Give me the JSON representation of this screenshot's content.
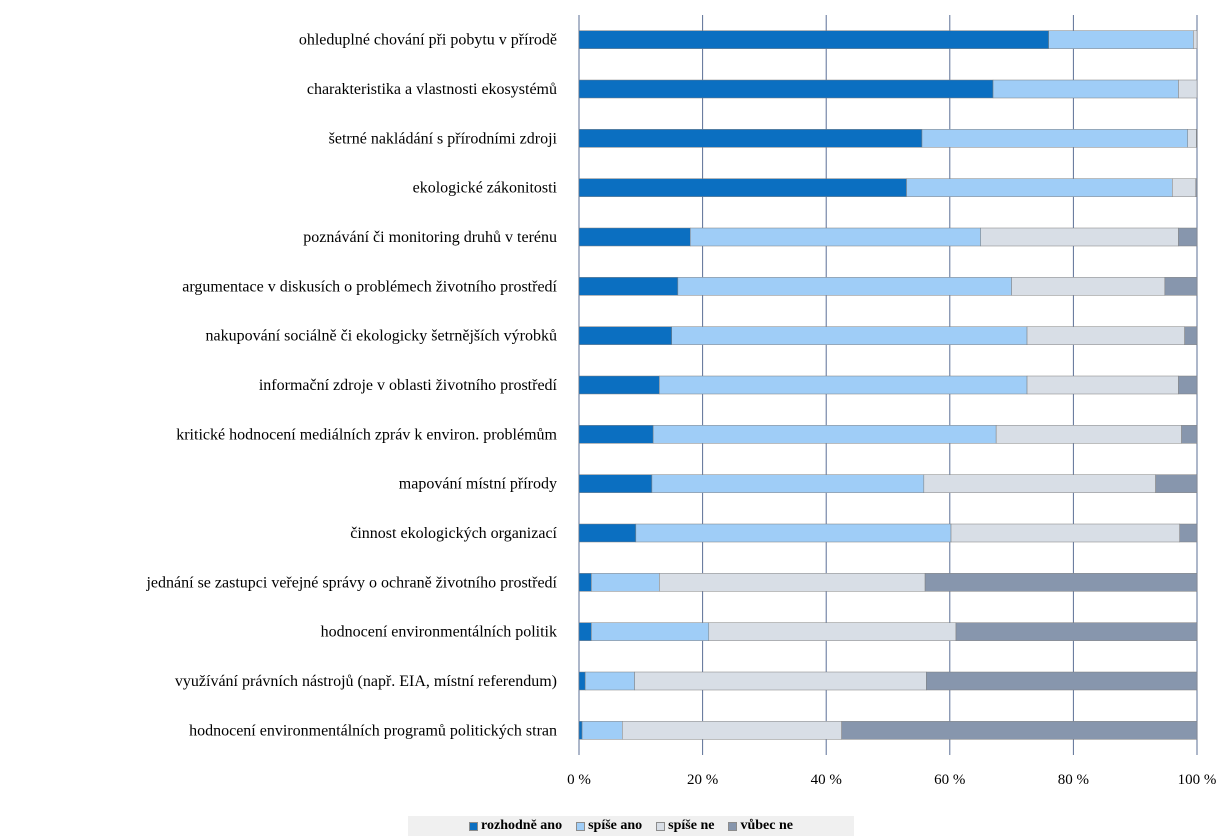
{
  "chart_data": {
    "type": "bar",
    "orientation": "horizontal",
    "stacked": "percent",
    "categories": [
      "ohleduplné chování při pobytu v přírodě",
      "charakteristika a vlastnosti ekosystémů",
      "šetrné nakládání s přírodními zdroji",
      "ekologické zákonitosti",
      "poznávání či monitoring druhů v terénu",
      "argumentace v diskusích o problémech životního prostředí",
      "nakupování sociálně či ekologicky šetrnějších výrobků",
      "informační zdroje v oblasti životního prostředí",
      "kritické hodnocení mediálních zpráv k environ. problémům",
      "mapování místní přírody",
      "činnost ekologických organizací",
      "jednání se zastupci veřejné správy o ochraně životního prostředí",
      "hodnocení environmentálních politik",
      "využívání právních nástrojů (např. EIA, místní referendum)",
      "hodnocení environmentálních programů politických stran"
    ],
    "series": [
      {
        "name": "rozhodně ano",
        "color": "#0b6fc1",
        "values": [
          76,
          67,
          55.5,
          53,
          18,
          16,
          15,
          13,
          12,
          11.8,
          9.2,
          2,
          2,
          1,
          0.5
        ]
      },
      {
        "name": "spíše ano",
        "color": "#9fcdf7",
        "values": [
          23.4,
          30,
          43,
          43,
          47,
          54,
          57.5,
          59.5,
          55.5,
          44,
          51,
          11,
          19,
          8,
          6.5
        ]
      },
      {
        "name": "spíše ne",
        "color": "#d8dee6",
        "values": [
          0.6,
          3,
          1.4,
          3.8,
          32,
          24.8,
          25.5,
          24.5,
          30,
          37.5,
          37,
          43,
          40,
          47.2,
          35.5
        ]
      },
      {
        "name": "vůbec ne",
        "color": "#8796ad",
        "values": [
          0,
          0,
          0.1,
          0.2,
          3,
          5.2,
          2,
          3,
          2.5,
          6.7,
          2.8,
          44,
          39,
          43.8,
          57.5
        ]
      }
    ],
    "xlim": [
      0,
      100
    ],
    "xticks": [
      "0 %",
      "20 %",
      "40 %",
      "60 %",
      "80 %",
      "100 %"
    ],
    "grid": "vertical",
    "legend_position": "bottom",
    "title": "",
    "xlabel": "",
    "ylabel": ""
  }
}
